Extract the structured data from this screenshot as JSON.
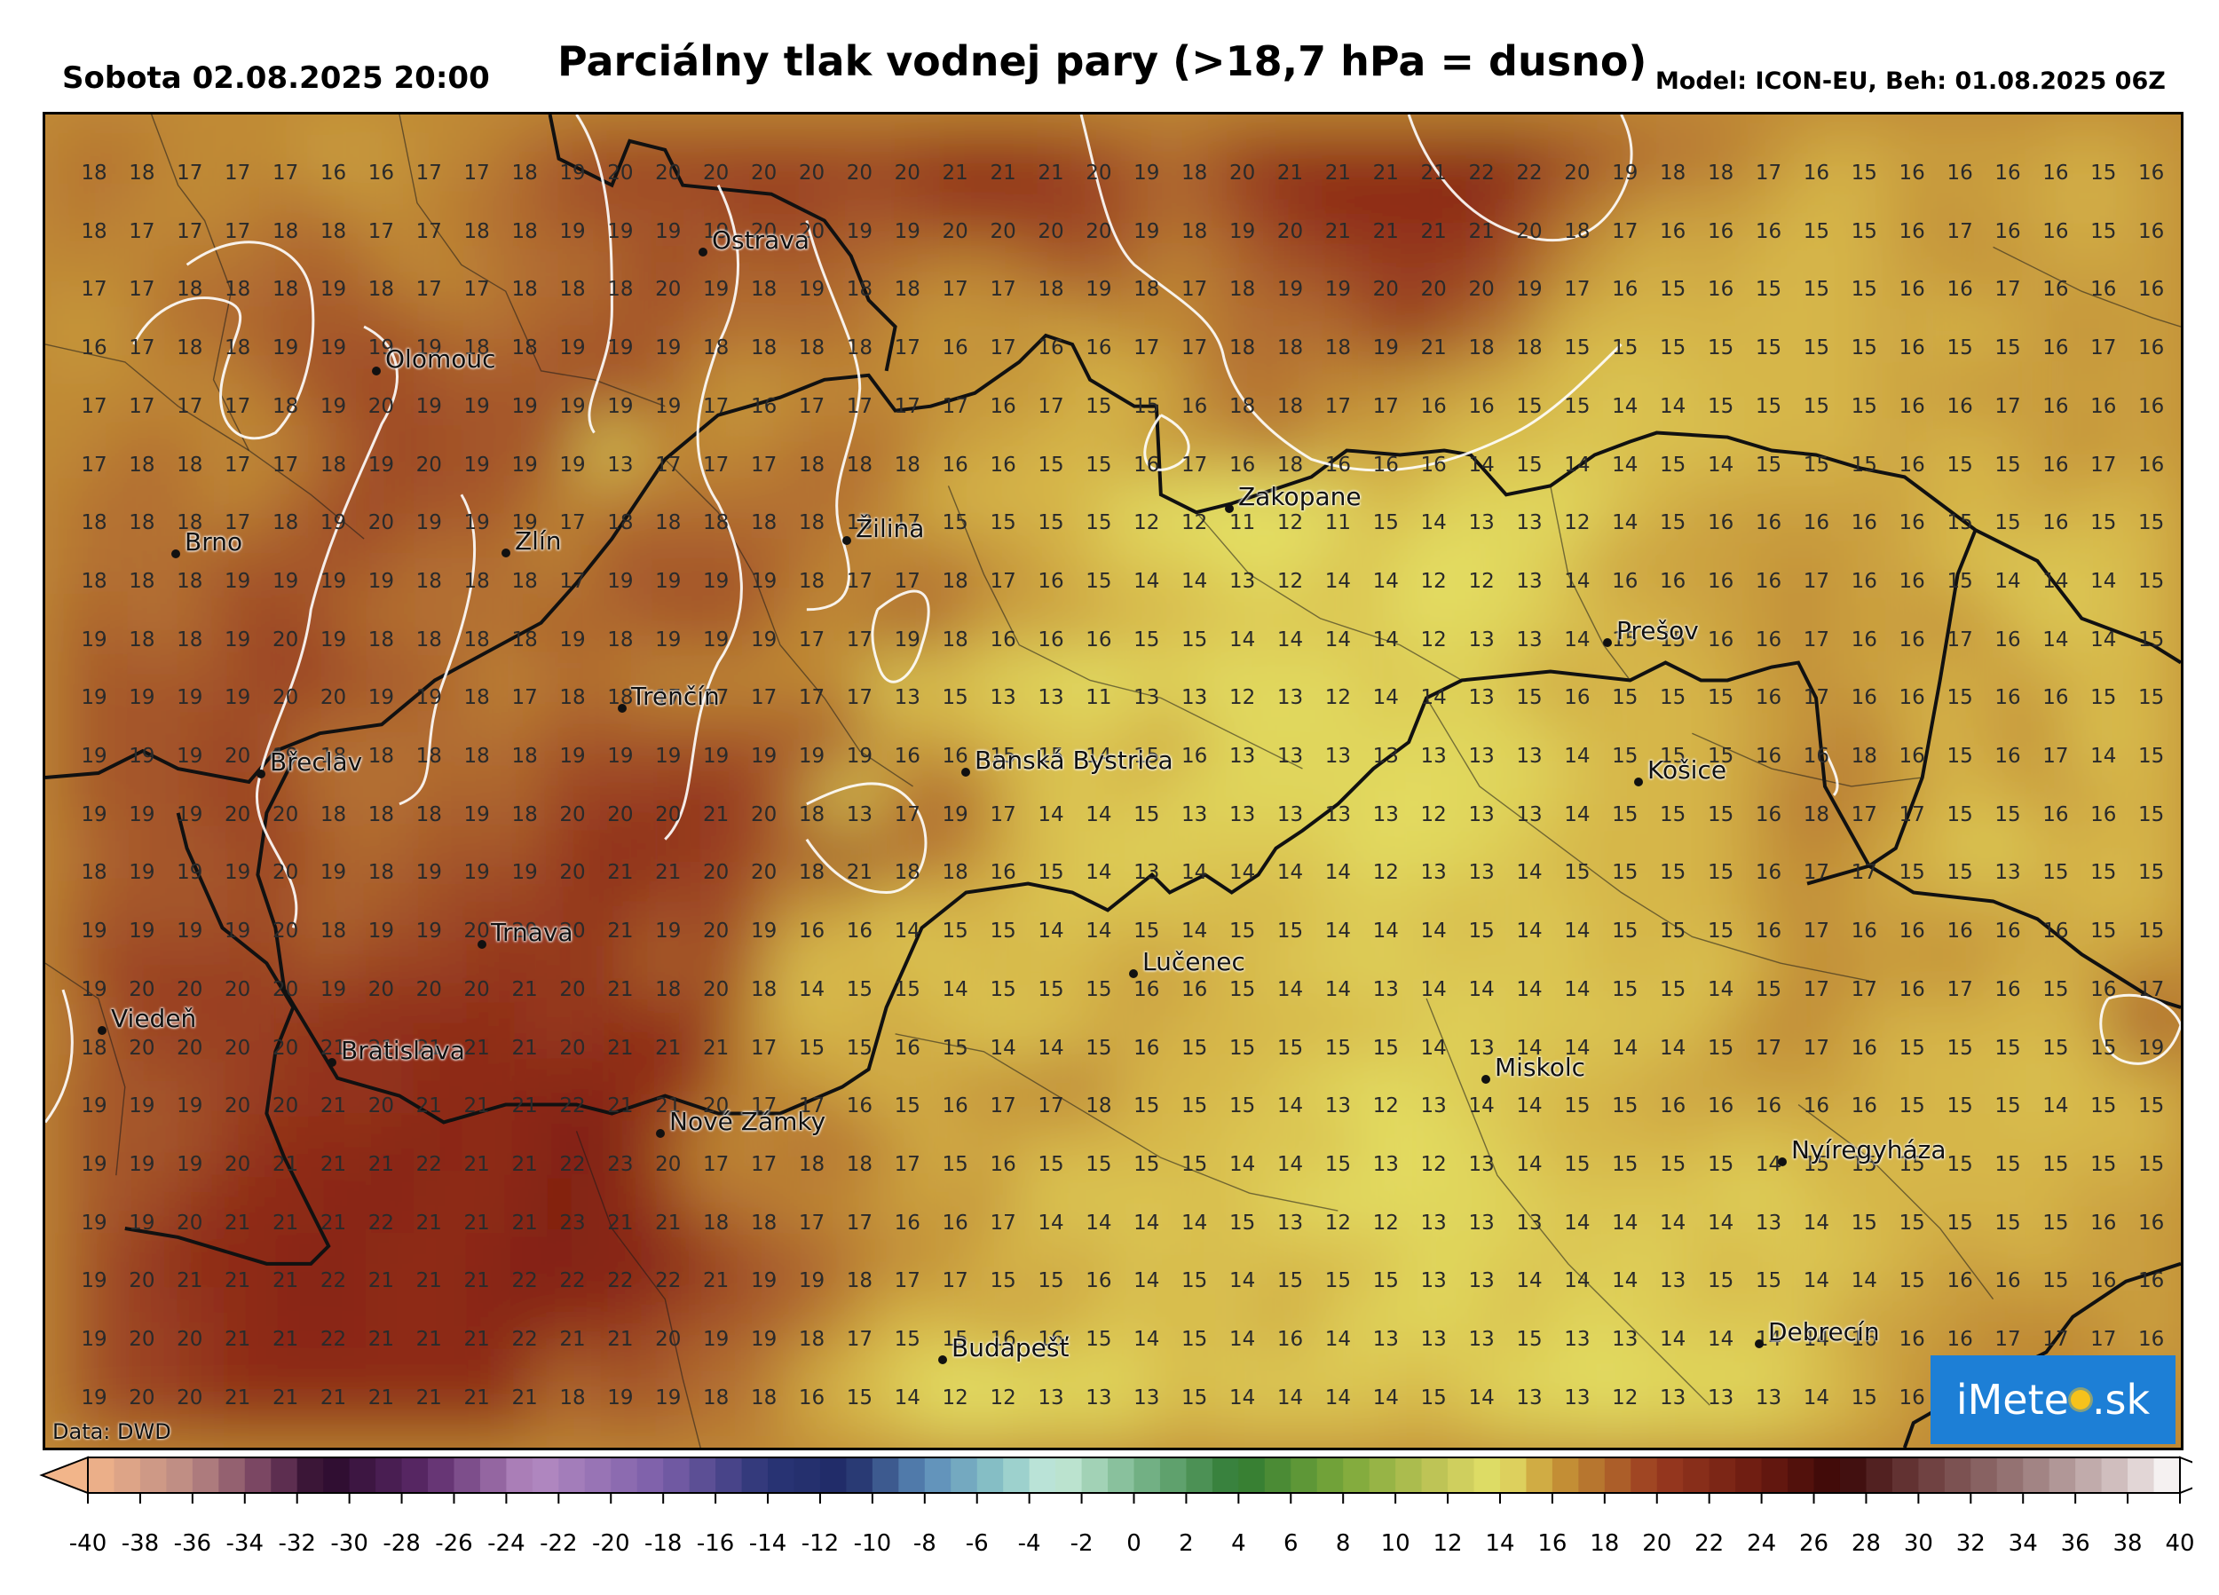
{
  "header": {
    "datetime": "Sobota 02.08.2025 20:00",
    "title": "Parciálny tlak vodnej pary (>18,7 hPa = dusno)",
    "model": "Model: ICON-EU, Beh: 01.08.2025 06Z"
  },
  "map": {
    "data_credit": "Data: DWD",
    "logo": {
      "pre": "iMete",
      "post": ".sk"
    },
    "grid": {
      "rows": [
        [
          18,
          18,
          17,
          17,
          17,
          16,
          16,
          17,
          17,
          18,
          19,
          20,
          20,
          20,
          20,
          20,
          20,
          20,
          21,
          21,
          21,
          20,
          19,
          18,
          20,
          21,
          21,
          21,
          21,
          22,
          22,
          20,
          19,
          18,
          18,
          17,
          16,
          15,
          16,
          16,
          16,
          16,
          15,
          16
        ],
        [
          18,
          17,
          17,
          17,
          18,
          18,
          17,
          17,
          18,
          18,
          19,
          19,
          19,
          19,
          20,
          20,
          19,
          19,
          20,
          20,
          20,
          20,
          19,
          18,
          19,
          20,
          21,
          21,
          21,
          21,
          20,
          18,
          17,
          16,
          16,
          16,
          15,
          15,
          16,
          17,
          16,
          16,
          15,
          16
        ],
        [
          17,
          17,
          18,
          18,
          18,
          19,
          18,
          17,
          17,
          18,
          18,
          18,
          20,
          19,
          18,
          19,
          18,
          18,
          17,
          17,
          18,
          19,
          18,
          17,
          18,
          19,
          19,
          20,
          20,
          20,
          19,
          17,
          16,
          15,
          16,
          15,
          15,
          15,
          16,
          16,
          17,
          16,
          16,
          16
        ],
        [
          16,
          17,
          18,
          18,
          19,
          19,
          19,
          19,
          18,
          18,
          19,
          19,
          19,
          18,
          18,
          18,
          18,
          17,
          16,
          17,
          16,
          16,
          17,
          17,
          18,
          18,
          18,
          19,
          21,
          18,
          18,
          15,
          15,
          15,
          15,
          15,
          15,
          15,
          16,
          15,
          15,
          16,
          17,
          16
        ],
        [
          17,
          17,
          17,
          17,
          18,
          19,
          20,
          19,
          19,
          19,
          19,
          19,
          19,
          17,
          16,
          17,
          17,
          17,
          17,
          16,
          17,
          15,
          15,
          16,
          18,
          18,
          17,
          17,
          16,
          16,
          15,
          15,
          14,
          14,
          15,
          15,
          15,
          15,
          16,
          16,
          17,
          16,
          16,
          16
        ],
        [
          17,
          18,
          18,
          17,
          17,
          18,
          19,
          20,
          19,
          19,
          19,
          13,
          17,
          17,
          17,
          18,
          18,
          18,
          16,
          16,
          15,
          15,
          16,
          17,
          16,
          18,
          16,
          16,
          16,
          14,
          15,
          14,
          14,
          15,
          14,
          15,
          15,
          15,
          16,
          15,
          15,
          16,
          17,
          16
        ],
        [
          18,
          18,
          18,
          17,
          18,
          19,
          20,
          19,
          19,
          19,
          17,
          18,
          18,
          18,
          18,
          18,
          18,
          17,
          15,
          15,
          15,
          15,
          12,
          12,
          11,
          12,
          11,
          15,
          14,
          13,
          13,
          12,
          14,
          15,
          16,
          16,
          16,
          16,
          16,
          15,
          15,
          16,
          15,
          15
        ],
        [
          18,
          18,
          18,
          19,
          19,
          19,
          19,
          18,
          18,
          18,
          17,
          19,
          19,
          19,
          19,
          18,
          17,
          17,
          18,
          17,
          16,
          15,
          14,
          14,
          13,
          12,
          14,
          14,
          12,
          12,
          13,
          14,
          16,
          16,
          16,
          16,
          17,
          16,
          16,
          15,
          14,
          14,
          14,
          15
        ],
        [
          19,
          18,
          18,
          19,
          20,
          19,
          18,
          18,
          18,
          18,
          19,
          18,
          19,
          19,
          19,
          17,
          17,
          19,
          18,
          16,
          16,
          16,
          15,
          15,
          14,
          14,
          14,
          14,
          12,
          13,
          13,
          14,
          15,
          15,
          16,
          16,
          17,
          16,
          16,
          17,
          16,
          14,
          14,
          15
        ],
        [
          19,
          19,
          19,
          19,
          20,
          20,
          19,
          19,
          18,
          17,
          18,
          18,
          17,
          17,
          17,
          17,
          17,
          13,
          15,
          13,
          13,
          11,
          13,
          13,
          12,
          13,
          12,
          14,
          14,
          13,
          15,
          16,
          15,
          15,
          15,
          16,
          17,
          16,
          16,
          15,
          16,
          16,
          15,
          15
        ],
        [
          19,
          19,
          19,
          20,
          19,
          18,
          18,
          18,
          18,
          18,
          19,
          19,
          19,
          19,
          19,
          19,
          19,
          16,
          16,
          15,
          15,
          14,
          15,
          16,
          13,
          13,
          13,
          13,
          13,
          13,
          13,
          14,
          15,
          15,
          15,
          16,
          16,
          18,
          16,
          15,
          16,
          17,
          14,
          15
        ],
        [
          19,
          19,
          19,
          20,
          20,
          18,
          18,
          18,
          19,
          18,
          20,
          20,
          20,
          21,
          20,
          18,
          13,
          17,
          19,
          17,
          14,
          14,
          15,
          13,
          13,
          13,
          13,
          13,
          12,
          13,
          13,
          14,
          15,
          15,
          15,
          16,
          18,
          17,
          17,
          15,
          15,
          16,
          16,
          15
        ],
        [
          18,
          19,
          19,
          19,
          20,
          19,
          18,
          19,
          19,
          19,
          20,
          21,
          21,
          20,
          20,
          18,
          21,
          18,
          18,
          16,
          15,
          14,
          13,
          14,
          14,
          14,
          14,
          12,
          13,
          13,
          14,
          15,
          15,
          15,
          15,
          16,
          17,
          17,
          15,
          15,
          13,
          15,
          15,
          15
        ],
        [
          19,
          19,
          19,
          19,
          20,
          18,
          19,
          19,
          20,
          20,
          20,
          21,
          19,
          20,
          19,
          16,
          16,
          14,
          15,
          15,
          14,
          14,
          15,
          14,
          15,
          15,
          14,
          14,
          14,
          15,
          14,
          14,
          15,
          15,
          15,
          16,
          17,
          16,
          16,
          16,
          16,
          16,
          15,
          15
        ],
        [
          19,
          20,
          20,
          20,
          20,
          19,
          20,
          20,
          20,
          21,
          20,
          21,
          18,
          20,
          18,
          14,
          15,
          15,
          14,
          15,
          15,
          15,
          16,
          16,
          15,
          14,
          14,
          13,
          14,
          14,
          14,
          14,
          15,
          15,
          14,
          15,
          17,
          17,
          16,
          17,
          16,
          15,
          16,
          17
        ],
        [
          18,
          20,
          20,
          20,
          20,
          21,
          21,
          21,
          21,
          21,
          20,
          21,
          21,
          21,
          17,
          15,
          15,
          16,
          15,
          14,
          14,
          15,
          16,
          15,
          15,
          15,
          15,
          15,
          14,
          13,
          14,
          14,
          14,
          14,
          15,
          17,
          17,
          16,
          15,
          15,
          15,
          15,
          15,
          19
        ],
        [
          19,
          19,
          19,
          20,
          20,
          21,
          20,
          21,
          21,
          21,
          22,
          21,
          21,
          20,
          17,
          17,
          16,
          15,
          16,
          17,
          17,
          18,
          15,
          15,
          15,
          14,
          13,
          12,
          13,
          14,
          14,
          15,
          15,
          16,
          16,
          16,
          16,
          16,
          15,
          15,
          15,
          14,
          15,
          15
        ],
        [
          19,
          19,
          19,
          20,
          21,
          21,
          21,
          22,
          21,
          21,
          22,
          23,
          20,
          17,
          17,
          18,
          18,
          17,
          15,
          16,
          15,
          15,
          15,
          15,
          14,
          14,
          15,
          13,
          12,
          13,
          14,
          15,
          15,
          15,
          15,
          14,
          15,
          15,
          15,
          15,
          15,
          15,
          15,
          15
        ],
        [
          19,
          19,
          20,
          21,
          21,
          21,
          22,
          21,
          21,
          21,
          23,
          21,
          21,
          18,
          18,
          17,
          17,
          16,
          16,
          17,
          14,
          14,
          14,
          14,
          15,
          13,
          12,
          12,
          13,
          13,
          13,
          14,
          14,
          14,
          14,
          13,
          14,
          15,
          15,
          15,
          15,
          15,
          16,
          16
        ],
        [
          19,
          20,
          21,
          21,
          21,
          22,
          21,
          21,
          21,
          22,
          22,
          22,
          22,
          21,
          19,
          19,
          18,
          17,
          17,
          15,
          15,
          16,
          14,
          15,
          14,
          15,
          15,
          15,
          13,
          13,
          14,
          14,
          14,
          13,
          15,
          15,
          14,
          14,
          15,
          16,
          16,
          15,
          16,
          16
        ],
        [
          19,
          20,
          20,
          21,
          21,
          22,
          21,
          21,
          21,
          22,
          21,
          21,
          20,
          19,
          19,
          18,
          17,
          15,
          15,
          16,
          16,
          15,
          14,
          15,
          14,
          16,
          14,
          13,
          13,
          13,
          15,
          13,
          13,
          14,
          14,
          14,
          14,
          16,
          16,
          16,
          17,
          17,
          17,
          16
        ],
        [
          19,
          20,
          20,
          21,
          21,
          21,
          21,
          21,
          21,
          21,
          18,
          19,
          19,
          18,
          18,
          16,
          15,
          14,
          12,
          12,
          13,
          13,
          13,
          15,
          14,
          14,
          14,
          14,
          15,
          14,
          13,
          13,
          12,
          13,
          13,
          13,
          14,
          15,
          16,
          17,
          17,
          null,
          null,
          null
        ]
      ]
    },
    "cities": [
      {
        "name": "Ostrava"
      },
      {
        "name": "Olomouc"
      },
      {
        "name": "Brno"
      },
      {
        "name": "Zlín"
      },
      {
        "name": "Žilina"
      },
      {
        "name": "Zakopane"
      },
      {
        "name": "Prešov"
      },
      {
        "name": "Trenčín"
      },
      {
        "name": "Břeclav"
      },
      {
        "name": "Banská Bystrica"
      },
      {
        "name": "Košice"
      },
      {
        "name": "Trnava"
      },
      {
        "name": "Lučenec"
      },
      {
        "name": "Viedeň"
      },
      {
        "name": "Bratislava"
      },
      {
        "name": "Miskolc"
      },
      {
        "name": "Nové Zámky"
      },
      {
        "name": "Nyíregyháza"
      },
      {
        "name": "Budapešť"
      },
      {
        "name": "Debrecín"
      }
    ]
  },
  "legend": {
    "ticks": [
      "-40",
      "-38",
      "-36",
      "-34",
      "-32",
      "-30",
      "-28",
      "-26",
      "-24",
      "-22",
      "-20",
      "-18",
      "-16",
      "-14",
      "-12",
      "-10",
      "-8",
      "-6",
      "-4",
      "-2",
      "0",
      "2",
      "4",
      "6",
      "8",
      "10",
      "12",
      "14",
      "16",
      "18",
      "20",
      "22",
      "24",
      "26",
      "28",
      "30",
      "32",
      "34",
      "36",
      "38",
      "40"
    ],
    "min": -40,
    "max": 40,
    "step": 1
  },
  "colors": {
    "low": "#e4e469",
    "mid": "#c99a38",
    "high": "#8f2816",
    "contour": "#ffffff",
    "logo": "#1d7fd6"
  }
}
